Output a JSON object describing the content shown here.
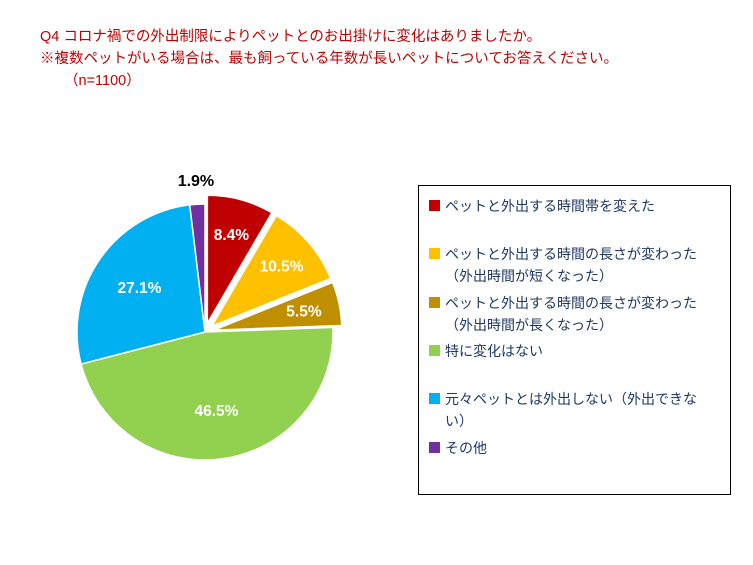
{
  "title": {
    "line1": "Q4 コロナ禍での外出制限によりペットとのお出掛けに変化はありましたか。",
    "line2": "※複数ペットがいる場合は、最も飼っている年数が長いペットについてお答えください。",
    "line3": "（n=1100）"
  },
  "chart_data": {
    "type": "pie",
    "title": "Q4 コロナ禍での外出制限によりペットとのお出掛けに変化はありましたか。",
    "sample_size_note": "（n=1100）",
    "categories": [
      "ペットと外出する時間帯を変えた",
      "ペットと外出する時間の長さが変わった（外出時間が短くなった）",
      "ペットと外出する時間の長さが変わった（外出時間が長くなった）",
      "特に変化はない",
      "元々ペットとは外出しない（外出できない）",
      "その他"
    ],
    "values": [
      8.4,
      10.5,
      5.5,
      46.5,
      27.1,
      1.9
    ],
    "value_labels": [
      "8.4%",
      "10.5%",
      "5.5%",
      "46.5%",
      "27.1%",
      "1.9%"
    ],
    "colors": [
      "#C00000",
      "#FFC000",
      "#BF8F00",
      "#92D050",
      "#00B0F0",
      "#7030A0"
    ],
    "start_angle_deg": 0,
    "direction": "clockwise",
    "exploded_slice_indices": [
      0,
      1,
      2
    ],
    "outside_label_indices": [
      5
    ],
    "legend_position": "right"
  },
  "legend": {
    "text_color": "#1F3864",
    "items": [
      {
        "label": "ペットと外出する時間帯を変えた",
        "color": "#C00000"
      },
      {
        "label": "ペットと外出する時間の長さが変わった（外出時間が短くなった）",
        "color": "#FFC000"
      },
      {
        "label": "ペットと外出する時間の長さが変わった（外出時間が長くなった）",
        "color": "#BF8F00"
      },
      {
        "label": "特に変化はない",
        "color": "#92D050"
      },
      {
        "label": "元々ペットとは外出しない（外出できない）",
        "color": "#00B0F0"
      },
      {
        "label": "その他",
        "color": "#7030A0"
      }
    ]
  }
}
